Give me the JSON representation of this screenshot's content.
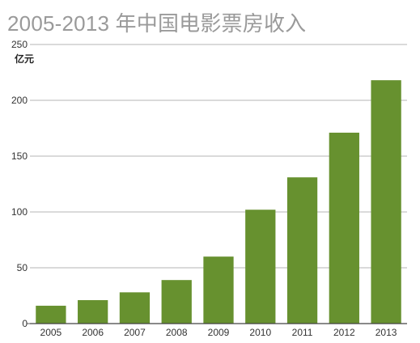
{
  "chart_data": {
    "type": "bar",
    "title": "2005-2013 年中国电影票房收入",
    "ylabel": "亿元",
    "xlabel": "",
    "categories": [
      "2005",
      "2006",
      "2007",
      "2008",
      "2009",
      "2010",
      "2011",
      "2012",
      "2013"
    ],
    "values": [
      16,
      21,
      28,
      39,
      60,
      102,
      131,
      171,
      218
    ],
    "ylim": [
      0,
      250
    ],
    "yticks": [
      0,
      50,
      100,
      150,
      200,
      250
    ],
    "grid": true,
    "bar_color": "#67912f"
  }
}
